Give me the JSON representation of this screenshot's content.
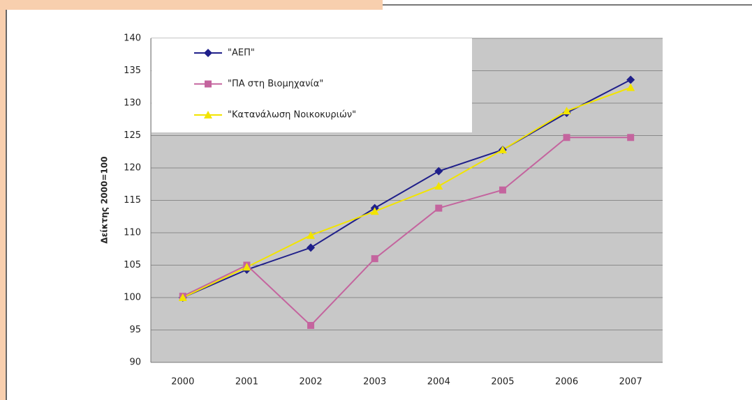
{
  "chart_data": {
    "type": "line",
    "categories": [
      "2000",
      "2001",
      "2002",
      "2003",
      "2004",
      "2005",
      "2006",
      "2007"
    ],
    "y_label": "Δείκτης 2000=100",
    "series": [
      {
        "name": "\"ΑΕΠ\"",
        "color": "#1f1f8a",
        "marker": "diamond",
        "values": [
          100,
          104.3,
          107.7,
          113.8,
          119.5,
          122.8,
          128.5,
          133.6
        ]
      },
      {
        "name": "\"ΠΑ στη Βιομηχανία\"",
        "color": "#c4649e",
        "marker": "square",
        "values": [
          100.2,
          105,
          95.7,
          106,
          113.8,
          116.6,
          124.7,
          124.7
        ]
      },
      {
        "name": "\"Κατανάλωση Νοικοκυριών\"",
        "color": "#f2e400",
        "marker": "triangle",
        "values": [
          100,
          104.7,
          109.6,
          113.3,
          117.2,
          122.8,
          128.8,
          132.4
        ]
      }
    ],
    "ylim": [
      90,
      140
    ],
    "yticks": [
      90,
      95,
      100,
      105,
      110,
      115,
      120,
      125,
      130,
      135,
      140
    ],
    "grid": true
  }
}
